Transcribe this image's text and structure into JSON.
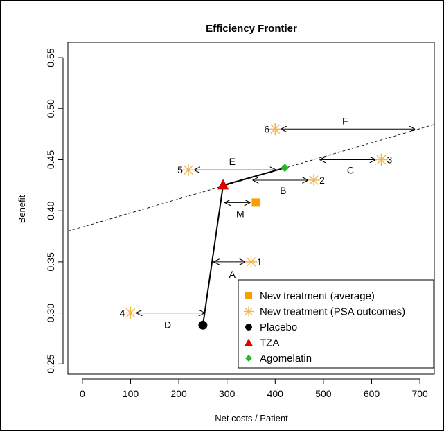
{
  "chart_data": {
    "type": "scatter",
    "title": "Efficiency Frontier",
    "xlabel": "Net costs / Patient",
    "ylabel": "Benefit",
    "xlim": [
      -30,
      730
    ],
    "ylim": [
      0.24,
      0.565
    ],
    "x_ticks": [
      0,
      100,
      200,
      300,
      400,
      500,
      600,
      700
    ],
    "y_ticks": [
      0.25,
      0.3,
      0.35,
      0.4,
      0.45,
      0.5,
      0.55
    ],
    "y_tick_labels": [
      "0.25",
      "0.30",
      "0.35",
      "0.40",
      "0.45",
      "0.50",
      "0.55"
    ],
    "grid": false,
    "legend_position": "bottom-right",
    "colors": {
      "new_avg": "#f5a000",
      "psa": "#f2b64c",
      "placebo": "#000000",
      "tza": "#e00000",
      "agomelatin": "#22bb22"
    },
    "legend": [
      {
        "label": "New treatment (average)",
        "marker": "square",
        "color": "#f5a000"
      },
      {
        "label": "New treatment (PSA outcomes)",
        "marker": "star",
        "color": "#f2b64c"
      },
      {
        "label": "Placebo",
        "marker": "circle",
        "color": "#000000"
      },
      {
        "label": "TZA",
        "marker": "triangle",
        "color": "#e00000"
      },
      {
        "label": "Agomelatin",
        "marker": "diamond",
        "color": "#22bb22"
      }
    ],
    "points": {
      "placebo": {
        "x": 250,
        "y": 0.288
      },
      "tza": {
        "x": 292,
        "y": 0.425
      },
      "agomelatin": {
        "x": 420,
        "y": 0.442
      },
      "new_treatment_average": {
        "x": 360,
        "y": 0.408
      },
      "psa_outcomes": [
        {
          "label": "1",
          "x": 350,
          "y": 0.35
        },
        {
          "label": "2",
          "x": 480,
          "y": 0.43
        },
        {
          "label": "3",
          "x": 620,
          "y": 0.45
        },
        {
          "label": "4",
          "x": 100,
          "y": 0.3
        },
        {
          "label": "5",
          "x": 220,
          "y": 0.44
        },
        {
          "label": "6",
          "x": 400,
          "y": 0.48
        }
      ]
    },
    "frontier": [
      {
        "x": 250,
        "y": 0.288
      },
      {
        "x": 292,
        "y": 0.425
      },
      {
        "x": 420,
        "y": 0.442
      }
    ],
    "dashed_extension": {
      "x1": -30,
      "y1": 0.38,
      "x2": 730,
      "y2": 0.4845
    },
    "arrows": [
      {
        "label": "A",
        "y": 0.35,
        "x_from": 350,
        "x_to": 272
      },
      {
        "label": "B",
        "y": 0.43,
        "x_from": 480,
        "x_to": 353
      },
      {
        "label": "C",
        "y": 0.45,
        "x_from": 620,
        "x_to": 492
      },
      {
        "label": "D",
        "y": 0.3,
        "x_from": 100,
        "x_to": 254
      },
      {
        "label": "E",
        "y": 0.44,
        "x_from": 220,
        "x_to": 402
      },
      {
        "label": "F",
        "y": 0.48,
        "x_from": 400,
        "x_to": 690
      },
      {
        "label": "M",
        "y": 0.408,
        "x_from": 360,
        "x_to": 295
      }
    ]
  }
}
